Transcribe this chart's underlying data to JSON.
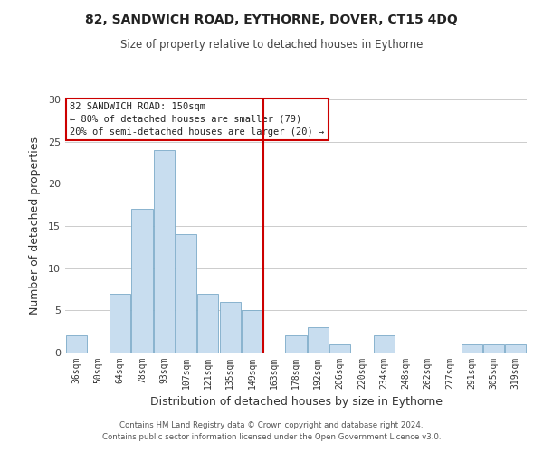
{
  "title": "82, SANDWICH ROAD, EYTHORNE, DOVER, CT15 4DQ",
  "subtitle": "Size of property relative to detached houses in Eythorne",
  "xlabel": "Distribution of detached houses by size in Eythorne",
  "ylabel": "Number of detached properties",
  "bar_color": "#c8ddef",
  "bar_edge_color": "#7aaac8",
  "categories": [
    "36sqm",
    "50sqm",
    "64sqm",
    "78sqm",
    "93sqm",
    "107sqm",
    "121sqm",
    "135sqm",
    "149sqm",
    "163sqm",
    "178sqm",
    "192sqm",
    "206sqm",
    "220sqm",
    "234sqm",
    "248sqm",
    "262sqm",
    "277sqm",
    "291sqm",
    "305sqm",
    "319sqm"
  ],
  "values": [
    2,
    0,
    7,
    17,
    24,
    14,
    7,
    6,
    5,
    0,
    2,
    3,
    1,
    0,
    2,
    0,
    0,
    0,
    1,
    1,
    1
  ],
  "vline_color": "#cc0000",
  "ylim": [
    0,
    30
  ],
  "yticks": [
    0,
    5,
    10,
    15,
    20,
    25,
    30
  ],
  "annotation_title": "82 SANDWICH ROAD: 150sqm",
  "annotation_line1": "← 80% of detached houses are smaller (79)",
  "annotation_line2": "20% of semi-detached houses are larger (20) →",
  "annotation_box_color": "#ffffff",
  "annotation_box_edge": "#cc0000",
  "footer_line1": "Contains HM Land Registry data © Crown copyright and database right 2024.",
  "footer_line2": "Contains public sector information licensed under the Open Government Licence v3.0.",
  "background_color": "#ffffff",
  "grid_color": "#cccccc"
}
